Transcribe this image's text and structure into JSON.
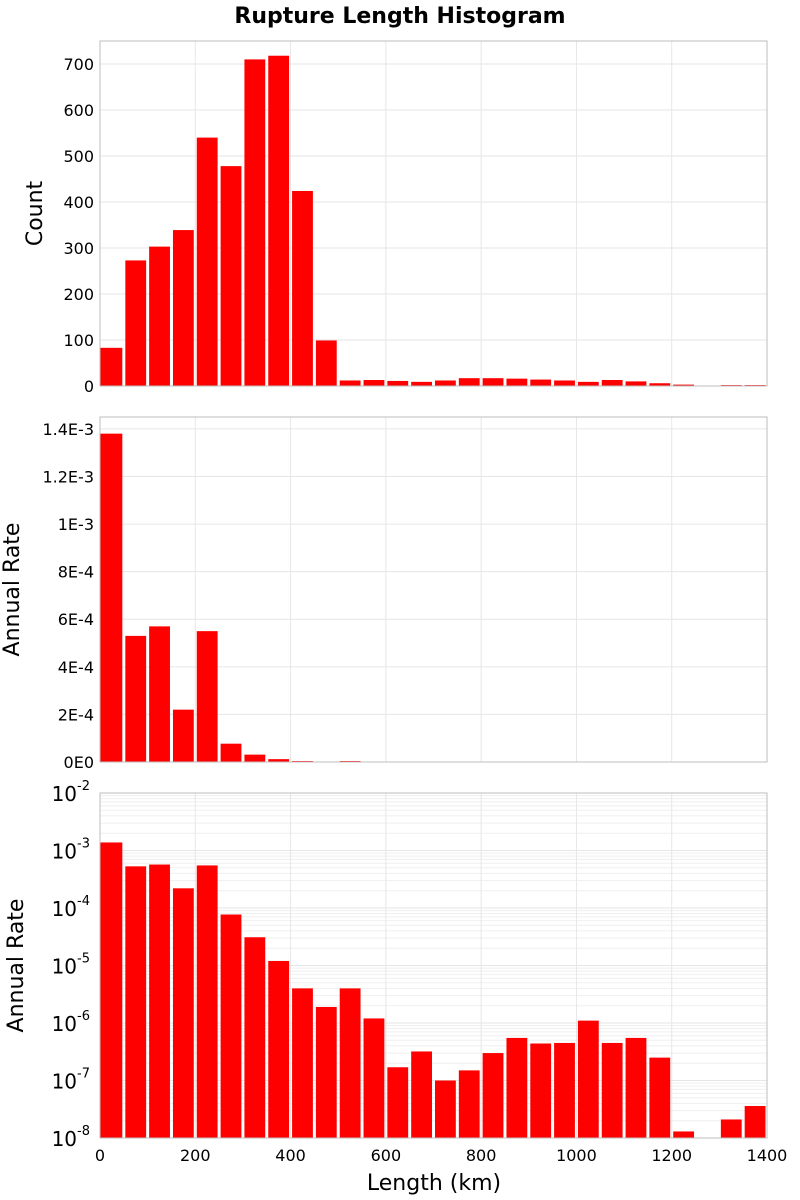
{
  "chart_data": {
    "type": "bar",
    "title": "Rupture Length Histogram",
    "xlabel": "Length (km)",
    "xlim": [
      0,
      1400
    ],
    "bin_width": 50,
    "x_ticks": [
      "0",
      "200",
      "400",
      "600",
      "800",
      "1000",
      "1200",
      "1400"
    ],
    "bin_starts": [
      0,
      50,
      100,
      150,
      200,
      250,
      300,
      350,
      400,
      450,
      500,
      550,
      600,
      650,
      700,
      750,
      800,
      850,
      900,
      950,
      1000,
      1050,
      1100,
      1150,
      1200,
      1250,
      1300,
      1350
    ],
    "colors": {
      "bar": "#ff0000",
      "grid": "#e6e6e6",
      "frame": "#bdbdbd"
    },
    "panels": [
      {
        "name": "count",
        "ylabel": "Count",
        "scale": "linear",
        "ylim": [
          0,
          750
        ],
        "y_ticks": [
          {
            "value": 0,
            "label": "0"
          },
          {
            "value": 100,
            "label": "100"
          },
          {
            "value": 200,
            "label": "200"
          },
          {
            "value": 300,
            "label": "300"
          },
          {
            "value": 400,
            "label": "400"
          },
          {
            "value": 500,
            "label": "500"
          },
          {
            "value": 600,
            "label": "600"
          },
          {
            "value": 700,
            "label": "700"
          }
        ],
        "values": [
          83,
          273,
          303,
          339,
          540,
          478,
          710,
          718,
          424,
          99,
          12,
          13,
          11,
          9,
          12,
          17,
          17,
          16,
          14,
          12,
          9,
          13,
          10,
          6,
          3,
          0,
          2,
          2
        ]
      },
      {
        "name": "annual-rate-linear",
        "ylabel": "Annual Rate",
        "scale": "linear",
        "ylim": [
          0,
          0.00145
        ],
        "y_ticks": [
          {
            "value": 0,
            "label": "0E0"
          },
          {
            "value": 0.0002,
            "label": "2E-4"
          },
          {
            "value": 0.0004,
            "label": "4E-4"
          },
          {
            "value": 0.0006,
            "label": "6E-4"
          },
          {
            "value": 0.0008,
            "label": "8E-4"
          },
          {
            "value": 0.001,
            "label": "1E-3"
          },
          {
            "value": 0.0012,
            "label": "1.2E-3"
          },
          {
            "value": 0.0014,
            "label": "1.4E-3"
          }
        ],
        "values": [
          0.00138,
          0.00053,
          0.00057,
          0.00022,
          0.00055,
          7.7e-05,
          3.1e-05,
          1.2e-05,
          4e-06,
          1.9e-06,
          4e-06,
          1.2e-06,
          1.7e-07,
          3.2e-07,
          1e-07,
          1.5e-07,
          3e-07,
          5.5e-07,
          4.4e-07,
          4.5e-07,
          1.1e-06,
          4.5e-07,
          5.5e-07,
          2.5e-07,
          1.3e-08,
          0,
          2.1e-08,
          3.6e-08
        ]
      },
      {
        "name": "annual-rate-log",
        "ylabel": "Annual Rate",
        "scale": "log",
        "ylim": [
          1e-08,
          0.01
        ],
        "y_ticks": [
          {
            "value": 1e-08,
            "base": "10",
            "exp": "-8"
          },
          {
            "value": 1e-07,
            "base": "10",
            "exp": "-7"
          },
          {
            "value": 1e-06,
            "base": "10",
            "exp": "-6"
          },
          {
            "value": 1e-05,
            "base": "10",
            "exp": "-5"
          },
          {
            "value": 0.0001,
            "base": "10",
            "exp": "-4"
          },
          {
            "value": 0.001,
            "base": "10",
            "exp": "-3"
          },
          {
            "value": 0.01,
            "base": "10",
            "exp": "-2"
          }
        ],
        "values": [
          0.00138,
          0.00053,
          0.00057,
          0.00022,
          0.00055,
          7.7e-05,
          3.1e-05,
          1.2e-05,
          4e-06,
          1.9e-06,
          4e-06,
          1.2e-06,
          1.7e-07,
          3.2e-07,
          1e-07,
          1.5e-07,
          3e-07,
          5.5e-07,
          4.4e-07,
          4.5e-07,
          1.1e-06,
          4.5e-07,
          5.5e-07,
          2.5e-07,
          1.3e-08,
          0,
          2.1e-08,
          3.6e-08
        ]
      }
    ]
  }
}
